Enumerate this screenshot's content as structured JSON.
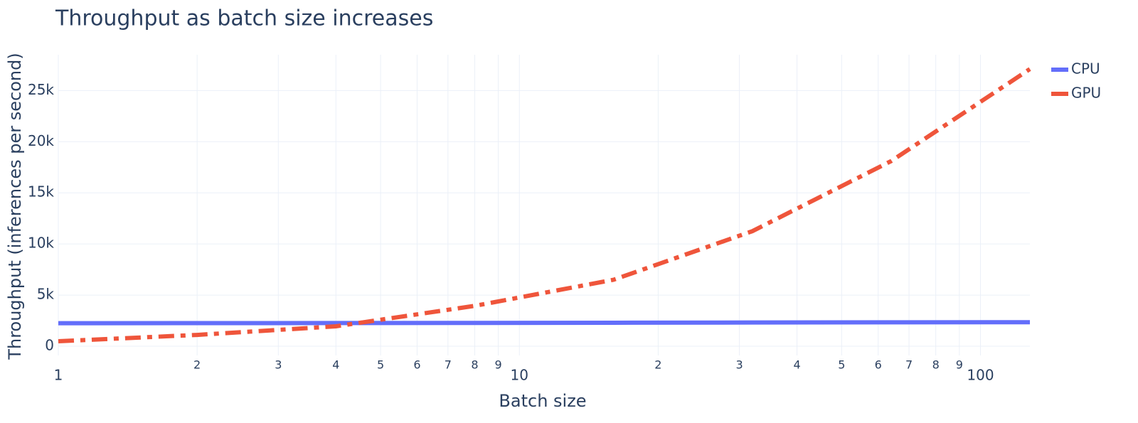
{
  "chart_data": {
    "type": "line",
    "title": "Throughput as batch size increases",
    "x_label": "Batch size",
    "y_label": "Throughput (inferences per second)",
    "x": [
      1,
      2,
      4,
      8,
      16,
      32,
      64,
      128
    ],
    "series": [
      {
        "name": "CPU",
        "color": "#636efa",
        "dash": "solid",
        "values": [
          2250,
          2260,
          2270,
          2280,
          2300,
          2320,
          2340,
          2350
        ]
      },
      {
        "name": "GPU",
        "color": "#ef553b",
        "dash": "dashdot",
        "values": [
          490,
          1110,
          1950,
          3950,
          6500,
          11250,
          18100,
          27100
        ]
      }
    ],
    "xlog": true,
    "xlim": [
      1,
      128
    ],
    "xticks": [
      1,
      2,
      3,
      4,
      5,
      6,
      7,
      8,
      9,
      10,
      {
        "value": 20,
        "label": "2"
      },
      {
        "value": 30,
        "label": "3"
      },
      {
        "value": 40,
        "label": "4"
      },
      {
        "value": 50,
        "label": "5"
      },
      {
        "value": 60,
        "label": "6"
      },
      {
        "value": 70,
        "label": "7"
      },
      {
        "value": 80,
        "label": "8"
      },
      {
        "value": 90,
        "label": "9"
      },
      100
    ],
    "ylim": [
      -900,
      28500
    ],
    "yticks": [
      0,
      {
        "value": 5000,
        "label": "5k"
      },
      {
        "value": 10000,
        "label": "10k"
      },
      {
        "value": 15000,
        "label": "15k"
      },
      {
        "value": 20000,
        "label": "20k"
      },
      {
        "value": 25000,
        "label": "25k"
      }
    ],
    "grid": true,
    "legend": "top-right"
  }
}
